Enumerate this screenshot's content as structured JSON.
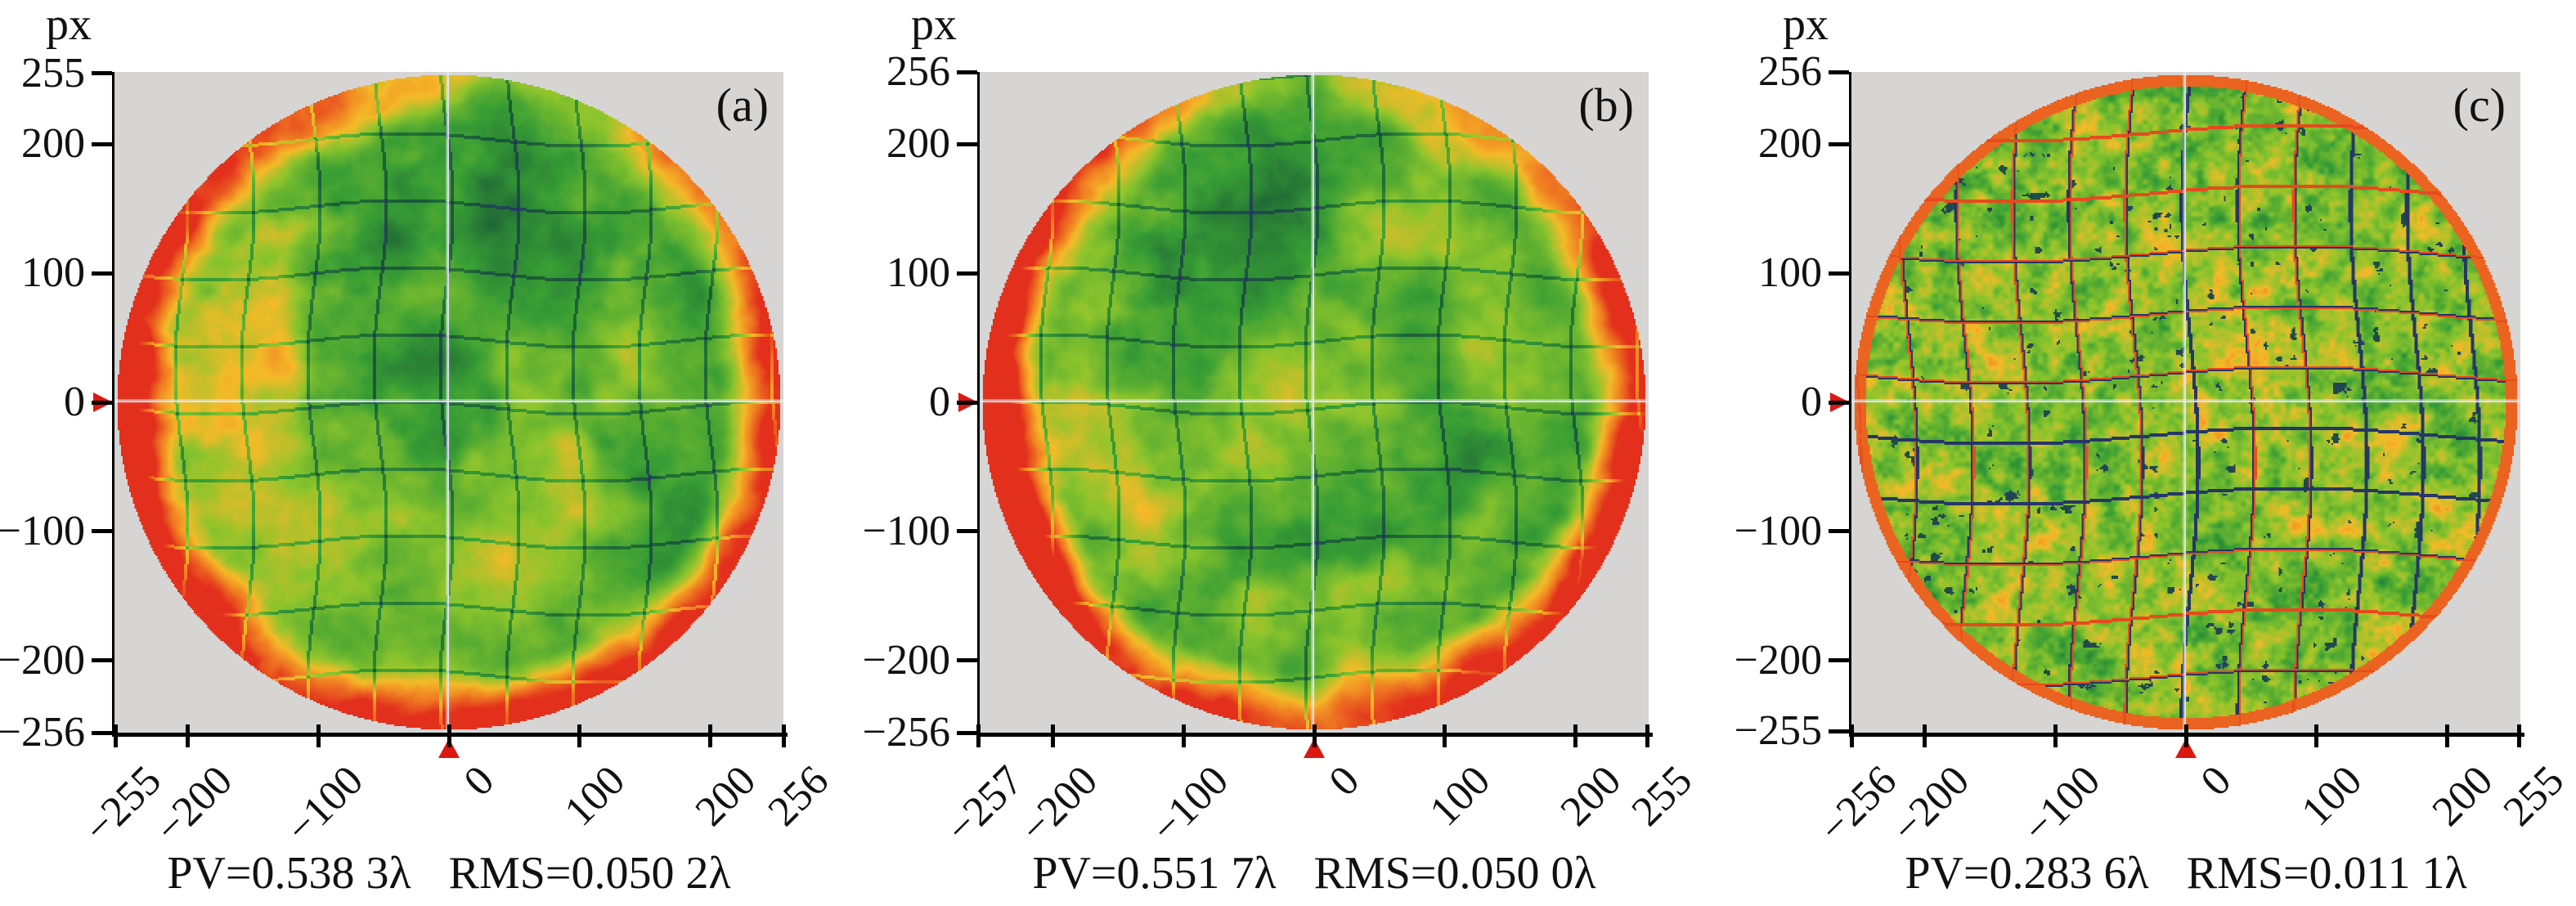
{
  "figure_type": "interferometric wavefront phase maps",
  "colors": {
    "plot_background": "#d6d5d3",
    "axis": "#000000",
    "marker_red": "#dc1812",
    "crosshair": "#e6e9f3",
    "palette": [
      "#282e72",
      "#1a5c36",
      "#389e34",
      "#8cc42c",
      "#f4ba28",
      "#f08222",
      "#e2301c"
    ]
  },
  "panels": [
    {
      "letter": "(a)",
      "y_unit": "px",
      "y_ticks": [
        255,
        200,
        100,
        0,
        -100,
        -200,
        -256
      ],
      "x_ticks": [
        -255,
        -200,
        -100,
        0,
        100,
        200,
        256
      ],
      "pv": "PV=0.538 3λ",
      "rms": "RMS=0.050 2λ",
      "variant": "smooth"
    },
    {
      "letter": "(b)",
      "y_unit": "px",
      "y_ticks": [
        256,
        200,
        100,
        0,
        -100,
        -200,
        -256
      ],
      "x_ticks": [
        -257,
        -200,
        -100,
        0,
        100,
        200,
        255
      ],
      "pv": "PV=0.551 7λ",
      "rms": "RMS=0.050 0λ",
      "variant": "smooth"
    },
    {
      "letter": "(c)",
      "y_unit": "px",
      "y_ticks": [
        256,
        200,
        100,
        0,
        -100,
        -200,
        -255
      ],
      "x_ticks": [
        -256,
        -200,
        -100,
        0,
        100,
        200,
        255
      ],
      "pv": "PV=0.283 6λ",
      "rms": "RMS=0.011 1λ",
      "variant": "grid"
    }
  ],
  "chart_data": [
    {
      "type": "heatmap",
      "panel": "(a)",
      "title": "",
      "x_unit": "px",
      "y_unit": "px",
      "xlim": [
        -255,
        256
      ],
      "ylim": [
        -256,
        255
      ],
      "x_ticks": [
        -255,
        -200,
        -100,
        0,
        100,
        200,
        256
      ],
      "y_ticks": [
        255,
        200,
        100,
        0,
        -100,
        -200,
        -256
      ],
      "pv_wavelengths": 0.5383,
      "rms_wavelengths": 0.0502,
      "caption": "PV=0.538 3λ  RMS=0.050 2λ",
      "shape": "circular aperture filling square gray plot area, crosshair through center",
      "texture": "coarse blobs: red/orange rim on left, right and bottom edges, orange left half, green midtones, deep navy patches near center and right, faint dark grid seams",
      "legend": "none",
      "grid": "off"
    },
    {
      "type": "heatmap",
      "panel": "(b)",
      "title": "",
      "x_unit": "px",
      "y_unit": "px",
      "xlim": [
        -257,
        255
      ],
      "ylim": [
        -256,
        256
      ],
      "x_ticks": [
        -257,
        -200,
        -100,
        0,
        100,
        200,
        255
      ],
      "y_ticks": [
        256,
        200,
        100,
        0,
        -100,
        -200,
        -256
      ],
      "pv_wavelengths": 0.5517,
      "rms_wavelengths": 0.05,
      "caption": "PV=0.551 7λ  RMS=0.050 0λ",
      "shape": "circular aperture filling square gray plot area, crosshair through center",
      "texture": "nearly identical to panel (a): red rim left/right/bottom, orange left side, green field with navy blobs, faint dark grid seams",
      "legend": "none",
      "grid": "off"
    },
    {
      "type": "heatmap",
      "panel": "(c)",
      "title": "",
      "x_unit": "px",
      "y_unit": "px",
      "xlim": [
        -256,
        255
      ],
      "ylim": [
        -255,
        256
      ],
      "x_ticks": [
        -256,
        -200,
        -100,
        0,
        100,
        200,
        255
      ],
      "y_ticks": [
        256,
        200,
        100,
        0,
        -100,
        -200,
        -255
      ],
      "pv_wavelengths": 0.2836,
      "rms_wavelengths": 0.0111,
      "caption": "PV=0.283 6λ  RMS=0.011 1λ",
      "shape": "circular aperture filling square gray plot area, crosshair through center",
      "texture": "fine-grained green/yellow/orange speckle with thin wavy red and navy grid lines, thin red rim, scattered navy pockets",
      "legend": "none",
      "grid": "off"
    }
  ]
}
